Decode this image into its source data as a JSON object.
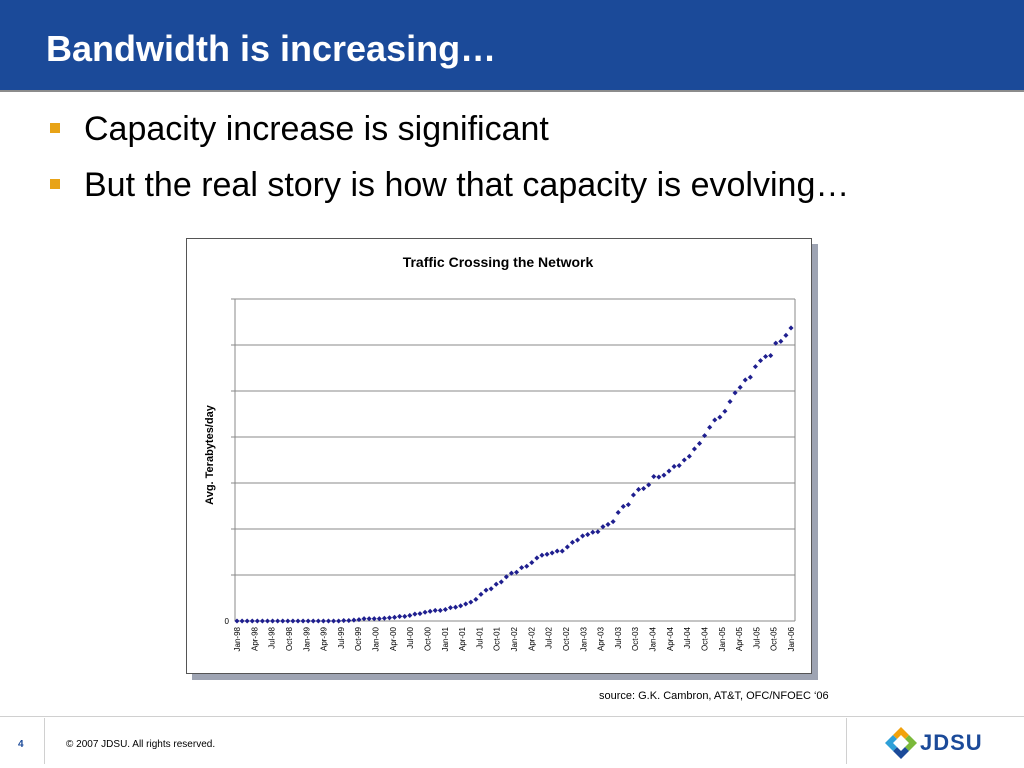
{
  "slide": {
    "title": "Bandwidth is increasing…",
    "bullets": [
      {
        "text": "Capacity increase is significant"
      },
      {
        "text": "But the real story is how that capacity is evolving…"
      }
    ],
    "source": "source: G.K. Cambron, AT&T, OFC/NFOEC ‘06",
    "footer": {
      "page": "4",
      "copyright": "© 2007 JDSU. All rights reserved."
    },
    "logo": {
      "text": "JDSU"
    },
    "colors": {
      "title_bar": "#1b4a99",
      "bullet": "#e8a317",
      "series": "#1f1f8f"
    }
  },
  "chart_data": {
    "type": "scatter",
    "title": "Traffic Crossing the Network",
    "xlabel": "",
    "ylabel": "Avg. Terabytes/day",
    "y_tick_labels": [
      "0"
    ],
    "grid": true,
    "legend": "none",
    "x_tick_labels": [
      "Jan-98",
      "Apr-98",
      "Jul-98",
      "Oct-98",
      "Jan-99",
      "Apr-99",
      "Jul-99",
      "Oct-99",
      "Jan-00",
      "Apr-00",
      "Jul-00",
      "Oct-00",
      "Jan-01",
      "Apr-01",
      "Jul-01",
      "Oct-01",
      "Jan-02",
      "Apr-02",
      "Jul-02",
      "Oct-02",
      "Jan-03",
      "Apr-03",
      "Jul-03",
      "Oct-03",
      "Jan-04",
      "Apr-04",
      "Jul-04",
      "Oct-04",
      "Jan-05",
      "Apr-05",
      "Jul-05",
      "Oct-05",
      "Jan-06"
    ],
    "ylim": [
      0,
      7
    ],
    "y_note": "values in gridline units; y axis numeric scale not printed except 0",
    "series": [
      {
        "values": [
          0.0,
          0.0,
          0.0,
          0.0,
          0.0,
          0.0,
          0.0,
          0.0,
          0.0,
          0.0,
          0.0,
          0.0,
          0.0,
          0.0,
          0.0,
          0.0,
          0.0,
          0.0,
          0.0,
          0.0,
          0.0,
          0.01,
          0.01,
          0.02,
          0.03,
          0.05,
          0.05,
          0.05,
          0.05,
          0.06,
          0.07,
          0.08,
          0.1,
          0.1,
          0.12,
          0.15,
          0.16,
          0.19,
          0.21,
          0.23,
          0.23,
          0.25,
          0.29,
          0.3,
          0.33,
          0.37,
          0.41,
          0.47,
          0.58,
          0.67,
          0.7,
          0.8,
          0.85,
          0.96,
          1.04,
          1.06,
          1.16,
          1.19,
          1.27,
          1.37,
          1.43,
          1.45,
          1.48,
          1.52,
          1.52,
          1.61,
          1.71,
          1.76,
          1.85,
          1.88,
          1.93,
          1.94,
          2.05,
          2.1,
          2.16,
          2.36,
          2.49,
          2.53,
          2.74,
          2.86,
          2.88,
          2.96,
          3.14,
          3.13,
          3.17,
          3.26,
          3.36,
          3.38,
          3.5,
          3.58,
          3.74,
          3.86,
          4.03,
          4.21,
          4.37,
          4.43,
          4.56,
          4.77,
          4.96,
          5.08,
          5.24,
          5.3,
          5.53,
          5.66,
          5.75,
          5.77,
          6.04,
          6.08,
          6.21,
          6.37
        ]
      }
    ]
  }
}
